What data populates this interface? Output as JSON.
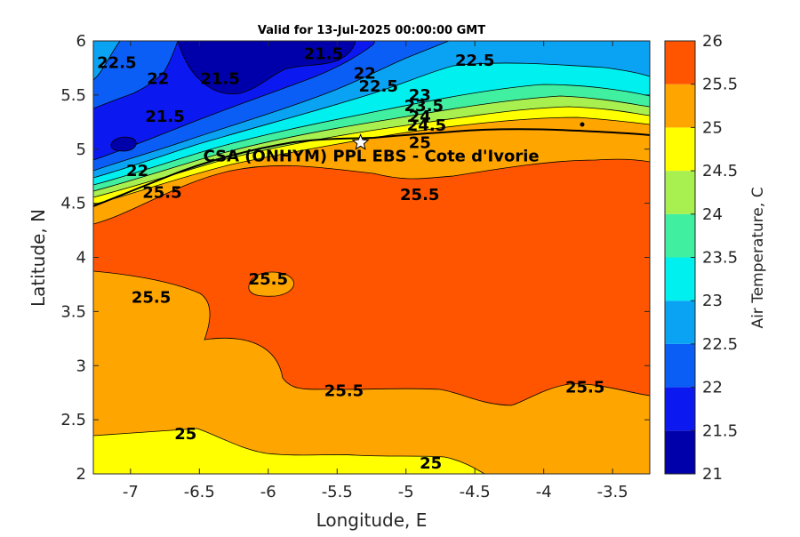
{
  "chart_data": {
    "type": "heatmap",
    "title": "Valid for 13-Jul-2025 00:00:00 GMT",
    "xlabel": "Longitude, E",
    "ylabel": "Latitude, N",
    "xlim": [
      -7.27,
      -3.23
    ],
    "ylim": [
      2,
      6
    ],
    "x_ticks": [
      "-7",
      "-6.5",
      "-6",
      "-5.5",
      "-5",
      "-4.5",
      "-4",
      "-3.5"
    ],
    "y_ticks": [
      "2",
      "2.5",
      "3",
      "3.5",
      "4",
      "4.5",
      "5",
      "5.5",
      "6"
    ],
    "colorbar": {
      "label": "Air Temperature, C",
      "ticks": [
        "21",
        "21.5",
        "22",
        "22.5",
        "23",
        "23.5",
        "24",
        "24.5",
        "25",
        "25.5",
        "26"
      ],
      "levels": [
        21,
        21.5,
        22,
        22.5,
        23,
        23.5,
        24,
        24.5,
        25,
        25.5,
        26
      ],
      "colors": [
        "#0000aa",
        "#0b18f0",
        "#0b5ef5",
        "#0aa3f3",
        "#00f0f0",
        "#40f0a0",
        "#a8f050",
        "#ffff00",
        "#ffa500",
        "#ff5500",
        "#ff0000"
      ]
    },
    "site": {
      "name": "CSA (ONHYM) PPL EBS  - Cote d'Ivorie",
      "lon": -5.33,
      "lat": 5.06
    },
    "contour_labels": [
      {
        "text": "22.5",
        "lon": -7.1,
        "lat": 5.8
      },
      {
        "text": "22",
        "lon": -6.8,
        "lat": 5.65
      },
      {
        "text": "21.5",
        "lon": -6.35,
        "lat": 5.65
      },
      {
        "text": "21.5",
        "lon": -5.6,
        "lat": 5.88
      },
      {
        "text": "22",
        "lon": -5.3,
        "lat": 5.7
      },
      {
        "text": "22.5",
        "lon": -5.2,
        "lat": 5.58
      },
      {
        "text": "22.5",
        "lon": -4.5,
        "lat": 5.82
      },
      {
        "text": "21.5",
        "lon": -6.75,
        "lat": 5.3
      },
      {
        "text": "22",
        "lon": -6.95,
        "lat": 4.8
      },
      {
        "text": "23",
        "lon": -4.9,
        "lat": 5.5
      },
      {
        "text": "23.5",
        "lon": -4.87,
        "lat": 5.4
      },
      {
        "text": "24",
        "lon": -4.9,
        "lat": 5.3
      },
      {
        "text": "24.5",
        "lon": -4.85,
        "lat": 5.22
      },
      {
        "text": "25",
        "lon": -4.9,
        "lat": 5.06
      },
      {
        "text": "25.5",
        "lon": -4.9,
        "lat": 4.58
      },
      {
        "text": "25.5",
        "lon": -6.77,
        "lat": 4.6
      },
      {
        "text": "25.5",
        "lon": -6.0,
        "lat": 3.8
      },
      {
        "text": "25.5",
        "lon": -6.85,
        "lat": 3.63
      },
      {
        "text": "25.5",
        "lon": -5.45,
        "lat": 2.77
      },
      {
        "text": "25.5",
        "lon": -3.7,
        "lat": 2.8
      },
      {
        "text": "25",
        "lon": -6.6,
        "lat": 2.37
      },
      {
        "text": "25",
        "lon": -4.82,
        "lat": 2.1
      }
    ]
  }
}
